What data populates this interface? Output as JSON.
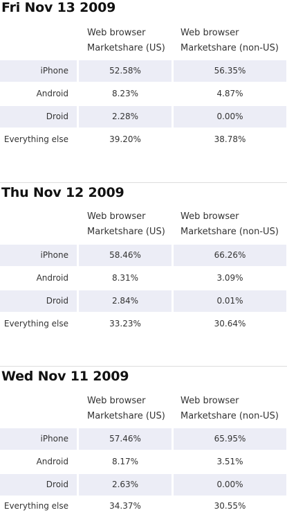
{
  "header": {
    "col1_line1": "Web browser",
    "col1_line2": "Marketshare (US)",
    "col2_line1": "Web browser",
    "col2_line2": "Marketshare (non-US)"
  },
  "sections": [
    {
      "date": "Fri Nov 13 2009",
      "rows": [
        {
          "label": "iPhone",
          "us": "52.58%",
          "non_us": "56.35%"
        },
        {
          "label": "Android",
          "us": "8.23%",
          "non_us": "4.87%"
        },
        {
          "label": "Droid",
          "us": "2.28%",
          "non_us": "0.00%"
        },
        {
          "label": "Everything else",
          "us": "39.20%",
          "non_us": "38.78%"
        }
      ]
    },
    {
      "date": "Thu Nov 12 2009",
      "rows": [
        {
          "label": "iPhone",
          "us": "58.46%",
          "non_us": "66.26%"
        },
        {
          "label": "Android",
          "us": "8.31%",
          "non_us": "3.09%"
        },
        {
          "label": "Droid",
          "us": "2.84%",
          "non_us": "0.01%"
        },
        {
          "label": "Everything else",
          "us": "33.23%",
          "non_us": "30.64%"
        }
      ]
    },
    {
      "date": "Wed Nov 11 2009",
      "rows": [
        {
          "label": "iPhone",
          "us": "57.46%",
          "non_us": "65.95%"
        },
        {
          "label": "Android",
          "us": "8.17%",
          "non_us": "3.51%"
        },
        {
          "label": "Droid",
          "us": "2.63%",
          "non_us": "0.00%"
        },
        {
          "label": "Everything else",
          "us": "34.37%",
          "non_us": "30.55%"
        }
      ]
    }
  ]
}
